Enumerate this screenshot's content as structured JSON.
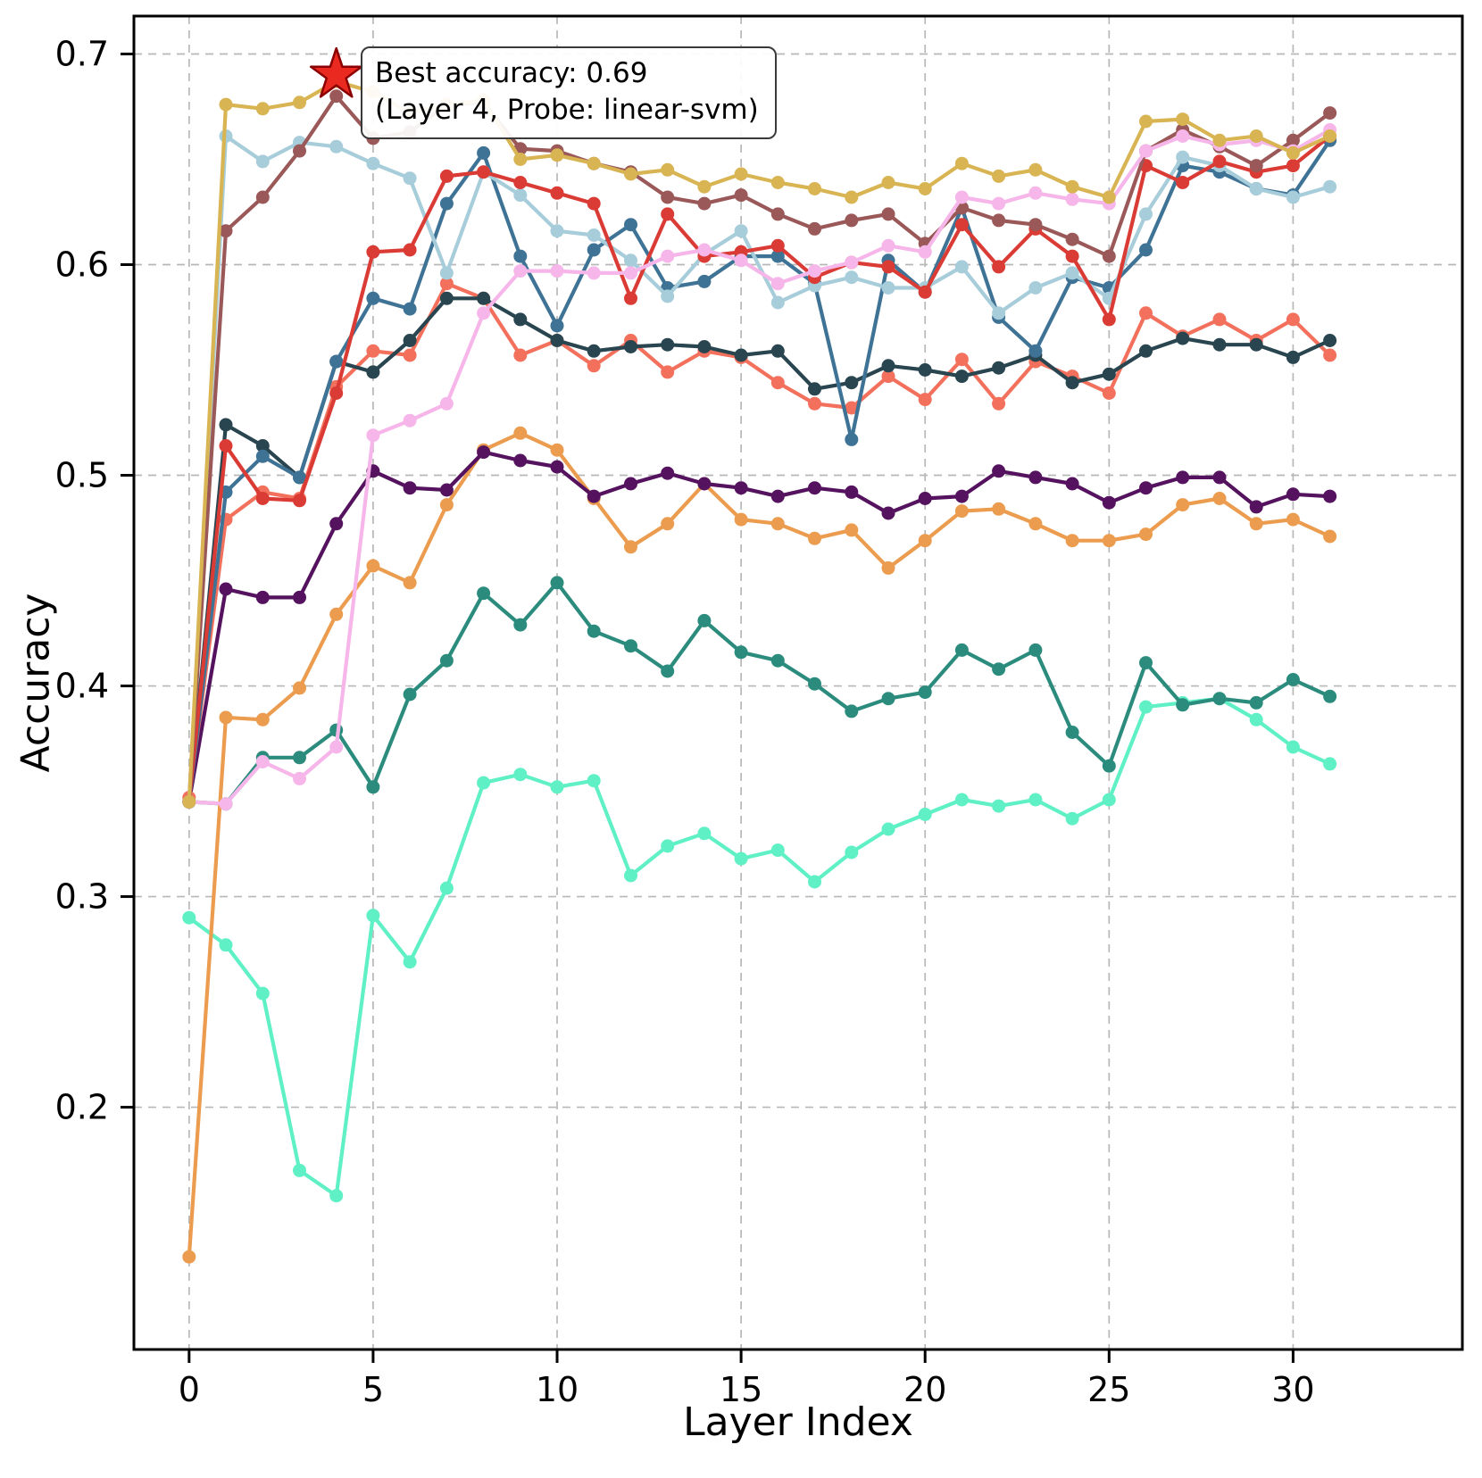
{
  "chart_data": {
    "type": "line",
    "title": "",
    "xlabel": "Layer Index",
    "ylabel": "Accuracy",
    "xlim": [
      -1.5,
      34.6
    ],
    "ylim": [
      0.085,
      0.718
    ],
    "xticks": [
      0,
      5,
      10,
      15,
      20,
      25,
      30
    ],
    "yticks": [
      0.2,
      0.3,
      0.4,
      0.5,
      0.6,
      0.7
    ],
    "grid": true,
    "grid_style": "dashed",
    "legend_position": "none",
    "marker": "circle",
    "x": [
      0,
      1,
      2,
      3,
      4,
      5,
      6,
      7,
      8,
      9,
      10,
      11,
      12,
      13,
      14,
      15,
      16,
      17,
      18,
      19,
      20,
      21,
      22,
      23,
      24,
      25,
      26,
      27,
      28,
      29,
      30,
      31
    ],
    "series": [
      {
        "name": "aquamarine",
        "color": "#5ff0c5",
        "values": [
          0.29,
          0.277,
          0.254,
          0.17,
          0.158,
          0.291,
          0.269,
          0.304,
          0.354,
          0.358,
          0.352,
          0.355,
          0.31,
          0.324,
          0.33,
          0.318,
          0.322,
          0.307,
          0.321,
          0.332,
          0.339,
          0.346,
          0.343,
          0.346,
          0.337,
          0.346,
          0.39,
          0.392,
          0.394,
          0.384,
          0.371,
          0.363
        ]
      },
      {
        "name": "teal",
        "color": "#2b8c7e",
        "values": [
          0.345,
          0.344,
          0.366,
          0.366,
          0.379,
          0.352,
          0.396,
          0.412,
          0.444,
          0.429,
          0.449,
          0.426,
          0.419,
          0.407,
          0.431,
          0.416,
          0.412,
          0.401,
          0.388,
          0.394,
          0.397,
          0.417,
          0.408,
          0.417,
          0.378,
          0.362,
          0.411,
          0.391,
          0.394,
          0.392,
          0.403,
          0.395
        ]
      },
      {
        "name": "orange",
        "color": "#ec9c4e",
        "values": [
          0.129,
          0.385,
          0.384,
          0.399,
          0.434,
          0.457,
          0.449,
          0.486,
          0.512,
          0.52,
          0.512,
          0.489,
          0.466,
          0.477,
          0.496,
          0.479,
          0.477,
          0.47,
          0.474,
          0.456,
          0.469,
          0.483,
          0.484,
          0.477,
          0.469,
          0.469,
          0.472,
          0.486,
          0.489,
          0.477,
          0.479,
          0.471
        ]
      },
      {
        "name": "dark-purple",
        "color": "#55135f",
        "values": [
          0.345,
          0.446,
          0.442,
          0.442,
          0.477,
          0.502,
          0.494,
          0.493,
          0.511,
          0.507,
          0.504,
          0.49,
          0.496,
          0.501,
          0.496,
          0.494,
          0.49,
          0.494,
          0.492,
          0.482,
          0.489,
          0.49,
          0.502,
          0.499,
          0.496,
          0.487,
          0.494,
          0.499,
          0.499,
          0.485,
          0.491,
          0.49
        ]
      },
      {
        "name": "salmon",
        "color": "#f2705c",
        "values": [
          0.347,
          0.479,
          0.492,
          0.489,
          0.542,
          0.559,
          0.557,
          0.591,
          0.584,
          0.557,
          0.564,
          0.552,
          0.564,
          0.549,
          0.559,
          0.556,
          0.544,
          0.534,
          0.532,
          0.547,
          0.536,
          0.555,
          0.534,
          0.554,
          0.547,
          0.539,
          0.577,
          0.566,
          0.574,
          0.564,
          0.574,
          0.557
        ]
      },
      {
        "name": "dark-slate",
        "color": "#29454f",
        "values": [
          0.345,
          0.524,
          0.514,
          0.499,
          0.554,
          0.549,
          0.564,
          0.584,
          0.584,
          0.574,
          0.564,
          0.559,
          0.561,
          0.562,
          0.561,
          0.557,
          0.559,
          0.541,
          0.544,
          0.552,
          0.55,
          0.547,
          0.551,
          0.557,
          0.544,
          0.548,
          0.559,
          0.565,
          0.562,
          0.562,
          0.556,
          0.564
        ]
      },
      {
        "name": "steel-blue",
        "color": "#3f7396",
        "values": [
          0.345,
          0.492,
          0.509,
          0.499,
          0.554,
          0.584,
          0.579,
          0.629,
          0.653,
          0.604,
          0.571,
          0.607,
          0.619,
          0.589,
          0.592,
          0.604,
          0.604,
          0.591,
          0.517,
          0.602,
          0.587,
          0.627,
          0.575,
          0.559,
          0.594,
          0.589,
          0.607,
          0.647,
          0.644,
          0.636,
          0.633,
          0.659
        ]
      },
      {
        "name": "light-blue",
        "color": "#a7cdda",
        "values": [
          0.345,
          0.661,
          0.649,
          0.658,
          0.656,
          0.648,
          0.641,
          0.596,
          0.644,
          0.633,
          0.616,
          0.614,
          0.602,
          0.585,
          0.605,
          0.616,
          0.582,
          0.59,
          0.594,
          0.589,
          0.589,
          0.599,
          0.577,
          0.589,
          0.596,
          0.584,
          0.624,
          0.651,
          0.647,
          0.636,
          0.632,
          0.637
        ]
      },
      {
        "name": "red",
        "color": "#da3b35",
        "values": [
          0.345,
          0.514,
          0.489,
          0.488,
          0.539,
          0.606,
          0.607,
          0.642,
          0.644,
          0.639,
          0.634,
          0.629,
          0.584,
          0.624,
          0.604,
          0.606,
          0.609,
          0.594,
          0.601,
          0.599,
          0.587,
          0.619,
          0.599,
          0.617,
          0.604,
          0.574,
          0.647,
          0.639,
          0.649,
          0.644,
          0.647,
          0.661
        ]
      },
      {
        "name": "dark-rosybrown",
        "color": "#9a5858",
        "values": [
          0.345,
          0.616,
          0.632,
          0.654,
          0.68,
          0.66,
          0.663,
          0.676,
          0.677,
          0.655,
          0.654,
          0.648,
          0.644,
          0.632,
          0.629,
          0.633,
          0.624,
          0.617,
          0.621,
          0.624,
          0.61,
          0.627,
          0.621,
          0.619,
          0.612,
          0.604,
          0.654,
          0.664,
          0.656,
          0.647,
          0.659,
          0.672
        ]
      },
      {
        "name": "pink",
        "color": "#f6b6e9",
        "values": [
          0.345,
          0.344,
          0.364,
          0.356,
          0.371,
          0.519,
          0.526,
          0.534,
          0.577,
          0.597,
          0.597,
          0.596,
          0.596,
          0.604,
          0.607,
          0.602,
          0.591,
          0.597,
          0.601,
          0.609,
          0.606,
          0.632,
          0.629,
          0.634,
          0.631,
          0.629,
          0.654,
          0.661,
          0.657,
          0.659,
          0.654,
          0.664
        ]
      },
      {
        "name": "gold",
        "color": "#d8b453",
        "values": [
          0.345,
          0.676,
          0.674,
          0.677,
          0.687,
          0.682,
          0.672,
          0.676,
          0.678,
          0.65,
          0.652,
          0.648,
          0.643,
          0.645,
          0.637,
          0.643,
          0.639,
          0.636,
          0.632,
          0.639,
          0.636,
          0.648,
          0.642,
          0.645,
          0.637,
          0.632,
          0.668,
          0.669,
          0.659,
          0.661,
          0.653,
          0.661
        ]
      }
    ],
    "best_point": {
      "x": 4,
      "y": 0.69,
      "marker": "star",
      "color": "#ea2a20",
      "edge_color": "#8b0000"
    },
    "annotation": {
      "line1": "Best accuracy: 0.69",
      "line2": "(Layer 4, Probe: linear-svm)"
    }
  }
}
